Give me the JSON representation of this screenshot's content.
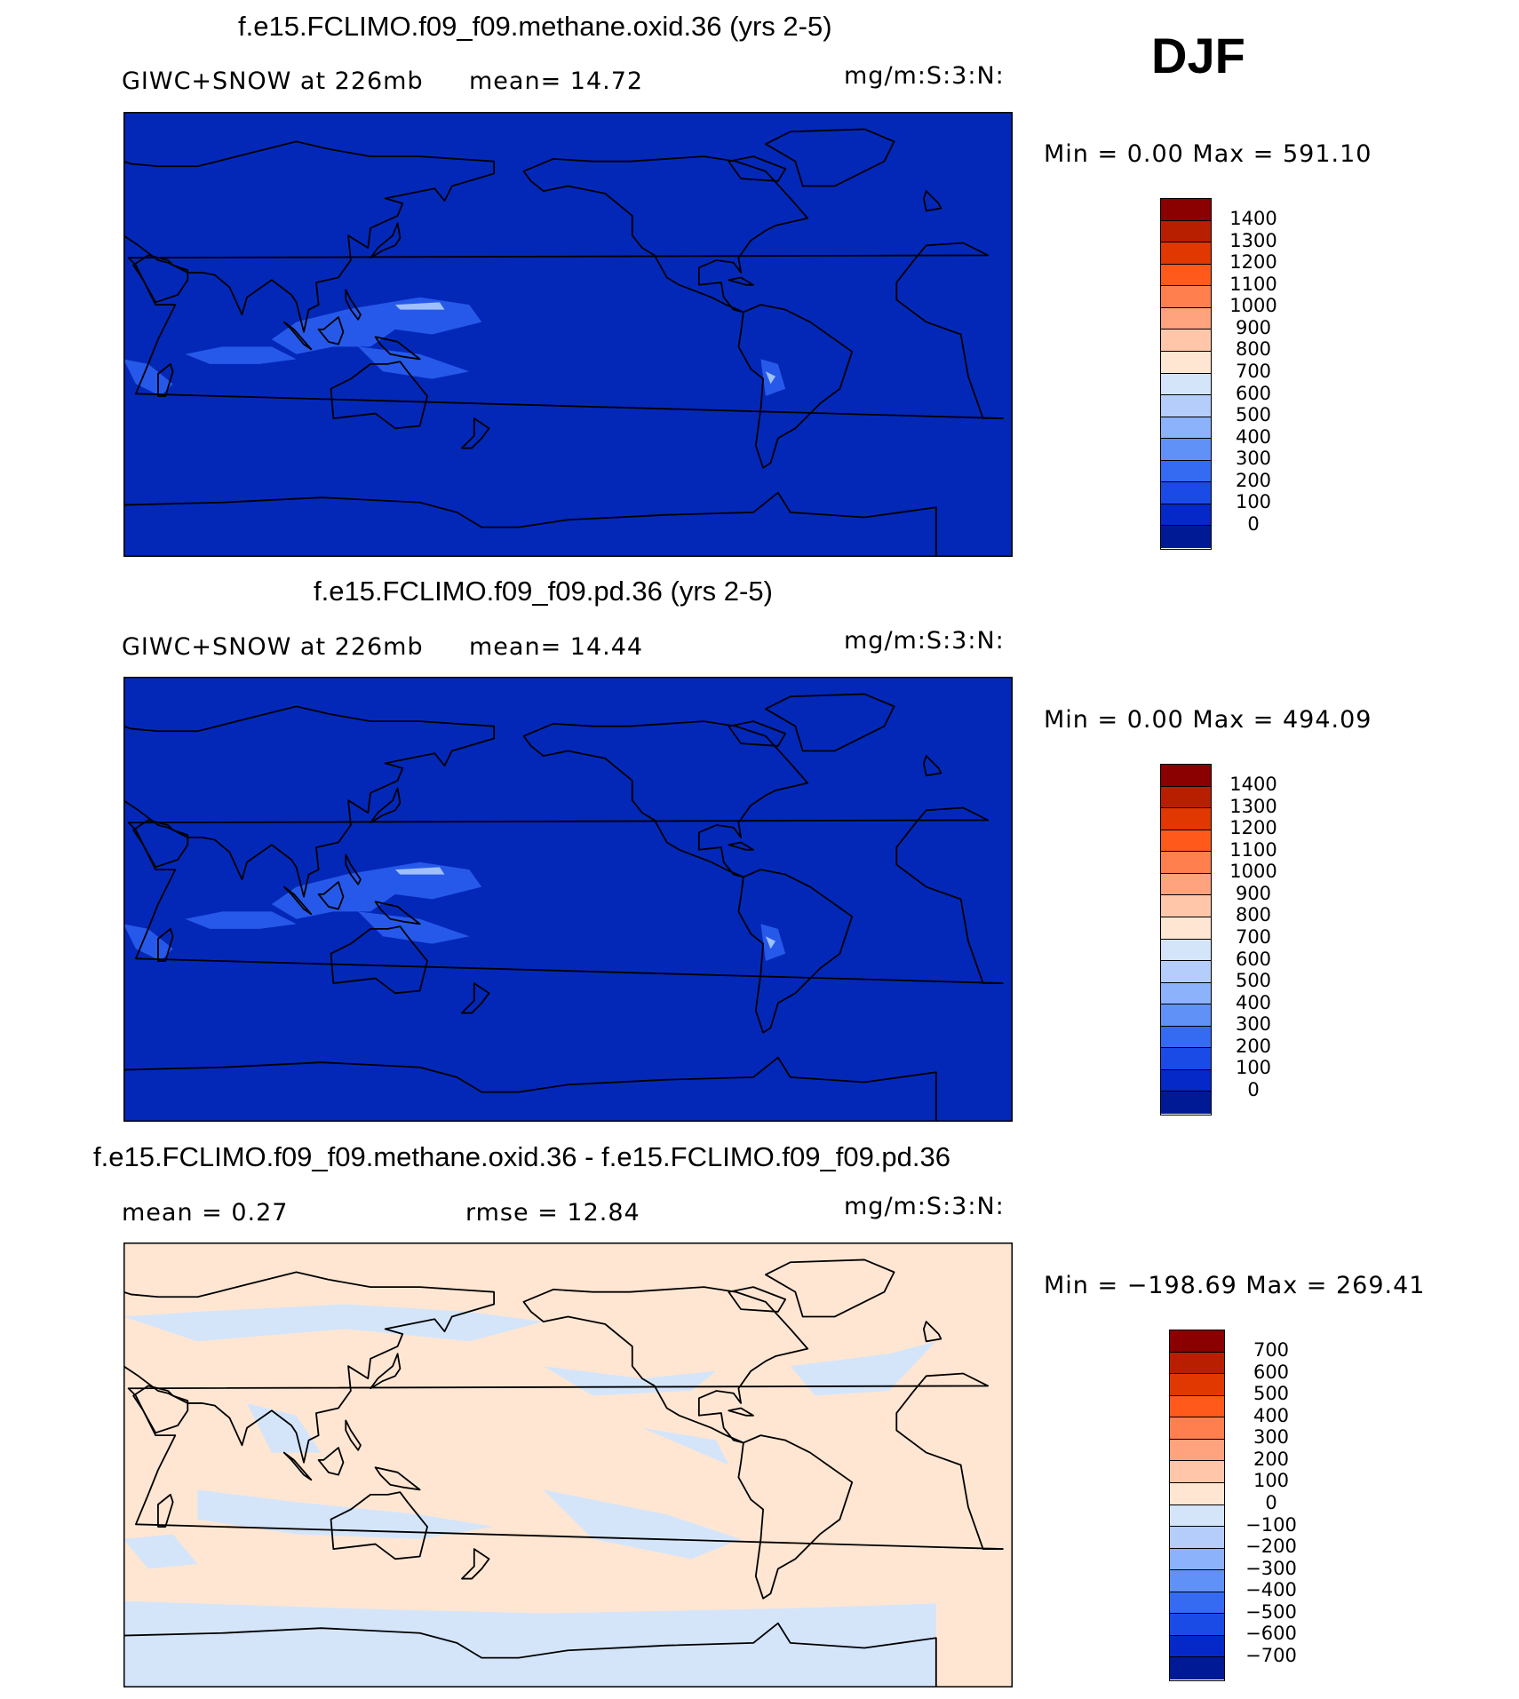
{
  "season": "DJF",
  "panels": [
    {
      "title": "f.e15.FCLIMO.f09_f09.methane.oxid.36 (yrs 2-5)",
      "left_label": "GIWC+SNOW at 226mb",
      "mid_label": "mean=  14.72",
      "units": "mg/m:S:3:N:",
      "minmax": "Min =    0.00 Max = 591.10",
      "colorbar_labels": [
        "1400",
        "1300",
        "1200",
        "1100",
        "1000",
        "900",
        "800",
        "700",
        "600",
        "500",
        "400",
        "300",
        "200",
        "100",
        "0"
      ],
      "colorbar_colors": [
        "#8b0000",
        "#b81f00",
        "#e03800",
        "#ff5a1c",
        "#ff7f4f",
        "#ffa27e",
        "#ffc6aa",
        "#ffe6d2",
        "#d4e5fa",
        "#b4cdfa",
        "#8bb2fb",
        "#5f91f7",
        "#356bf3",
        "#1a4be7",
        "#0528c8",
        "#001a96"
      ],
      "field": "mean"
    },
    {
      "title": "f.e15.FCLIMO.f09_f09.pd.36 (yrs 2-5)",
      "left_label": "GIWC+SNOW at 226mb",
      "mid_label": "mean=  14.44",
      "units": "mg/m:S:3:N:",
      "minmax": "Min =    0.00 Max = 494.09",
      "colorbar_labels": [
        "1400",
        "1300",
        "1200",
        "1100",
        "1000",
        "900",
        "800",
        "700",
        "600",
        "500",
        "400",
        "300",
        "200",
        "100",
        "0"
      ],
      "colorbar_colors": [
        "#8b0000",
        "#b81f00",
        "#e03800",
        "#ff5a1c",
        "#ff7f4f",
        "#ffa27e",
        "#ffc6aa",
        "#ffe6d2",
        "#d4e5fa",
        "#b4cdfa",
        "#8bb2fb",
        "#5f91f7",
        "#356bf3",
        "#1a4be7",
        "#0528c8",
        "#001a96"
      ],
      "field": "mean"
    },
    {
      "title": "f.e15.FCLIMO.f09_f09.methane.oxid.36 - f.e15.FCLIMO.f09_f09.pd.36",
      "left_label": "mean =    0.27",
      "mid_label": "rmse =   12.84",
      "units": "mg/m:S:3:N:",
      "minmax": "Min = −198.69 Max = 269.41",
      "colorbar_labels": [
        "700",
        "600",
        "500",
        "400",
        "300",
        "200",
        "100",
        "0",
        "−100",
        "−200",
        "−300",
        "−400",
        "−500",
        "−600",
        "−700"
      ],
      "colorbar_colors": [
        "#8b0000",
        "#b81f00",
        "#e03800",
        "#ff5a1c",
        "#ff7f4f",
        "#ffa27e",
        "#ffc6aa",
        "#ffe6d2",
        "#d4e5fa",
        "#b4cdfa",
        "#8bb2fb",
        "#5f91f7",
        "#356bf3",
        "#1a4be7",
        "#0528c8",
        "#001a96"
      ],
      "field": "diff"
    }
  ],
  "colors": {
    "mean_background": "#0328b8",
    "diff_positive": "#ffe6d2",
    "diff_negative": "#d4e5fa",
    "coastline": "#000000"
  }
}
